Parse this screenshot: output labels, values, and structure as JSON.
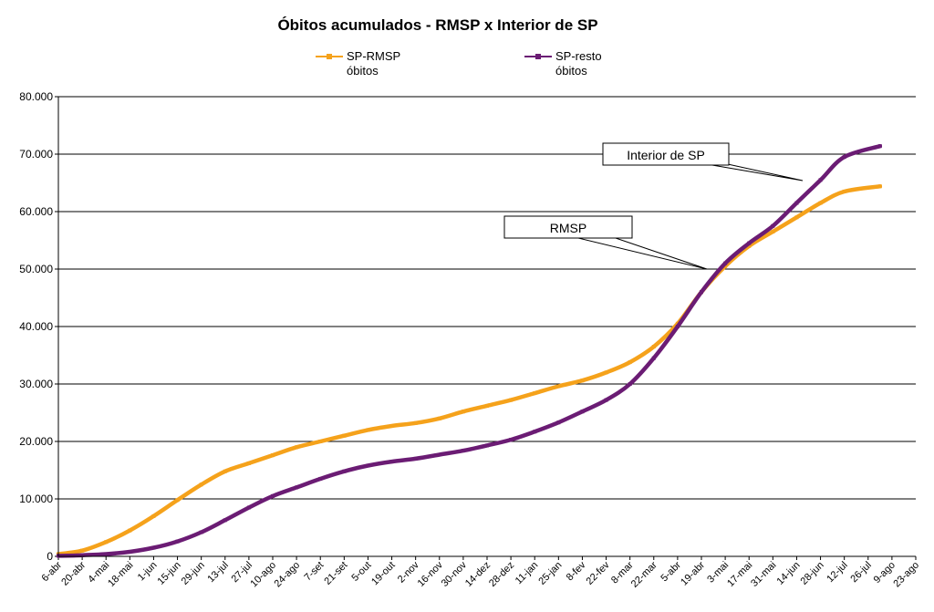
{
  "chart_data": {
    "type": "line",
    "title": "Óbitos acumulados - RMSP  x  Interior de SP",
    "xlabel": "",
    "ylabel": "",
    "ylim": [
      0,
      80000
    ],
    "y_ticks": [
      0,
      10000,
      20000,
      30000,
      40000,
      50000,
      60000,
      70000,
      80000
    ],
    "y_tick_labels": [
      "0",
      "10.000",
      "20.000",
      "30.000",
      "40.000",
      "50.000",
      "60.000",
      "70.000",
      "80.000"
    ],
    "x_tick_labels": [
      "6-abr",
      "20-abr",
      "4-mai",
      "18-mai",
      "1-jun",
      "15-jun",
      "29-jun",
      "13-jul",
      "27-jul",
      "10-ago",
      "24-ago",
      "7-set",
      "21-set",
      "5-out",
      "19-out",
      "2-nov",
      "16-nov",
      "30-nov",
      "14-dez",
      "28-dez",
      "11-jan",
      "25-jan",
      "8-fev",
      "22-fev",
      "8-mar",
      "22-mar",
      "5-abr",
      "19-abr",
      "3-mai",
      "17-mai",
      "31-mai",
      "14-jun",
      "28-jun",
      "12-jul",
      "26-jul",
      "9-ago",
      "23-ago"
    ],
    "grid": true,
    "legend_position": "top",
    "series": [
      {
        "name": "SP-RMSP óbitos",
        "legend_lines": [
          "SP-RMSP",
          "óbitos"
        ],
        "color": "#F5A21B",
        "marker": "square",
        "x": [
          0,
          1,
          2,
          3,
          4,
          5,
          6,
          7,
          8,
          9,
          10,
          11,
          12,
          13,
          14,
          15,
          16,
          17,
          18,
          19,
          20,
          21,
          22,
          23,
          24,
          25,
          26,
          27,
          28,
          29,
          30,
          31,
          32,
          33,
          34.5
        ],
        "values": [
          400,
          1000,
          2500,
          4500,
          7000,
          9800,
          12500,
          14800,
          16200,
          17600,
          19000,
          20000,
          21000,
          22000,
          22700,
          23200,
          24000,
          25200,
          26200,
          27200,
          28400,
          29600,
          30600,
          32000,
          33800,
          36500,
          40500,
          46000,
          50500,
          54000,
          56500,
          59000,
          61500,
          63500,
          64400
        ]
      },
      {
        "name": "SP-resto óbitos",
        "legend_lines": [
          "SP-resto",
          "óbitos"
        ],
        "color": "#6B1C74",
        "marker": "square",
        "x": [
          0,
          1,
          2,
          3,
          4,
          5,
          6,
          7,
          8,
          9,
          10,
          11,
          12,
          13,
          14,
          15,
          16,
          17,
          18,
          19,
          20,
          21,
          22,
          23,
          24,
          25,
          26,
          27,
          28,
          29,
          30,
          31,
          32,
          33,
          34.5
        ],
        "values": [
          100,
          200,
          400,
          800,
          1500,
          2600,
          4200,
          6300,
          8500,
          10500,
          12000,
          13500,
          14800,
          15800,
          16500,
          17000,
          17700,
          18400,
          19300,
          20300,
          21700,
          23300,
          25200,
          27200,
          30000,
          34500,
          40000,
          46000,
          51000,
          54500,
          57500,
          61500,
          65500,
          69500,
          71400
        ]
      }
    ],
    "annotations": [
      {
        "text": "Interior de SP"
      },
      {
        "text": "RMSP"
      }
    ]
  }
}
